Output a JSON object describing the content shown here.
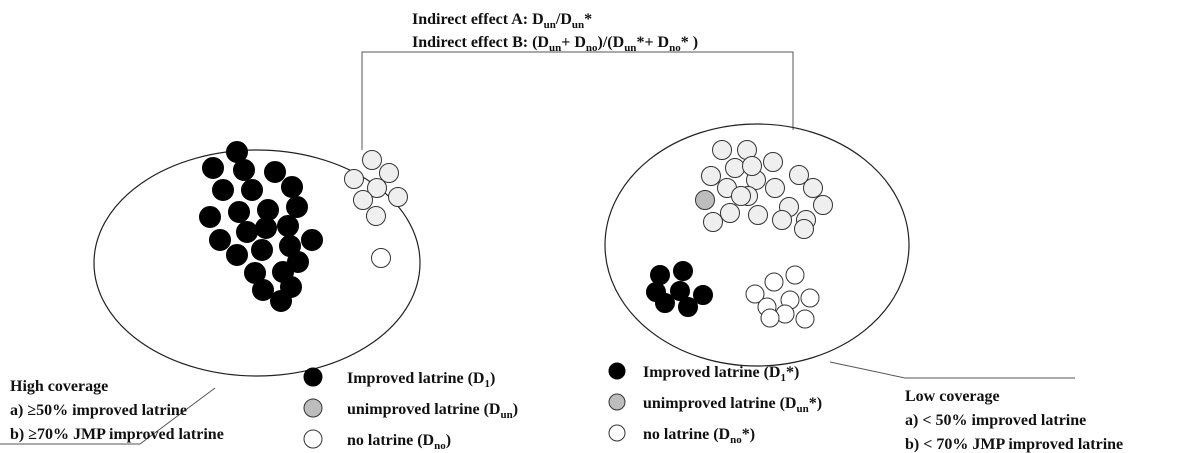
{
  "header": {
    "line_a": [
      "Indirect effect A: D",
      "un",
      "/D",
      "un",
      "*"
    ],
    "line_b": [
      "Indirect effect B: (D",
      "un",
      "+ D",
      "no",
      ")/(D",
      "un",
      "*+ D",
      "no",
      "* )"
    ]
  },
  "left_caption": [
    "High coverage",
    "a) ≥50% improved latrine",
    "b) ≥70% JMP improved latrine"
  ],
  "right_caption": [
    "Low coverage",
    "a) < 50% improved latrine",
    "b) < 70% JMP improved latrine"
  ],
  "legend": {
    "left": [
      [
        "Improved latrine (D",
        "1",
        ")"
      ],
      [
        "unimproved latrine (D",
        "un",
        ")"
      ],
      [
        "no latrine (D",
        "no",
        ")"
      ]
    ],
    "right": [
      [
        "Improved latrine (D",
        "1",
        "*)"
      ],
      [
        "unimproved latrine (D",
        "un",
        "*)"
      ],
      [
        "no latrine (D",
        "no",
        "*)"
      ]
    ]
  }
}
